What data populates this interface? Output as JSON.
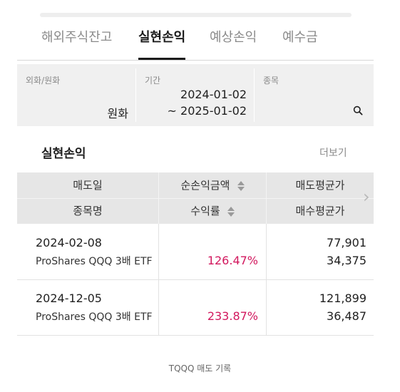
{
  "tabs": [
    {
      "label": "해외주식잔고",
      "active": false
    },
    {
      "label": "실현손익",
      "active": true
    },
    {
      "label": "예상손익",
      "active": false
    },
    {
      "label": "예수금",
      "active": false
    }
  ],
  "filter": {
    "currency_label": "외화/원화",
    "currency_value": "원화",
    "period_label": "기간",
    "period_start": "2024-01-02",
    "period_end": "~ 2025-01-02",
    "stock_label": "종목",
    "search_icon": "search-icon"
  },
  "section": {
    "title": "실현손익",
    "more_label": "더보기"
  },
  "table": {
    "headers": {
      "sell_date": "매도일",
      "net_profit": "순손익금액",
      "sell_avg": "매도평균가",
      "stock_name": "종목명",
      "return_rate": "수익률",
      "buy_avg": "매수평균가"
    },
    "rows": [
      {
        "date": "2024-02-08",
        "name": "ProShares QQQ 3배 ETF",
        "net_profit": "",
        "rate": "126.47%",
        "sell_avg": "77,901",
        "buy_avg": "34,375"
      },
      {
        "date": "2024-12-05",
        "name": "ProShares QQQ 3배 ETF",
        "net_profit": "",
        "rate": "233.87%",
        "sell_avg": "121,899",
        "buy_avg": "36,487"
      }
    ]
  },
  "caption": "TQQQ 매도 기록",
  "colors": {
    "accent_rate": "#d2185e",
    "filter_bg": "#f0f0f0",
    "header_bg": "#e6e6e6"
  }
}
